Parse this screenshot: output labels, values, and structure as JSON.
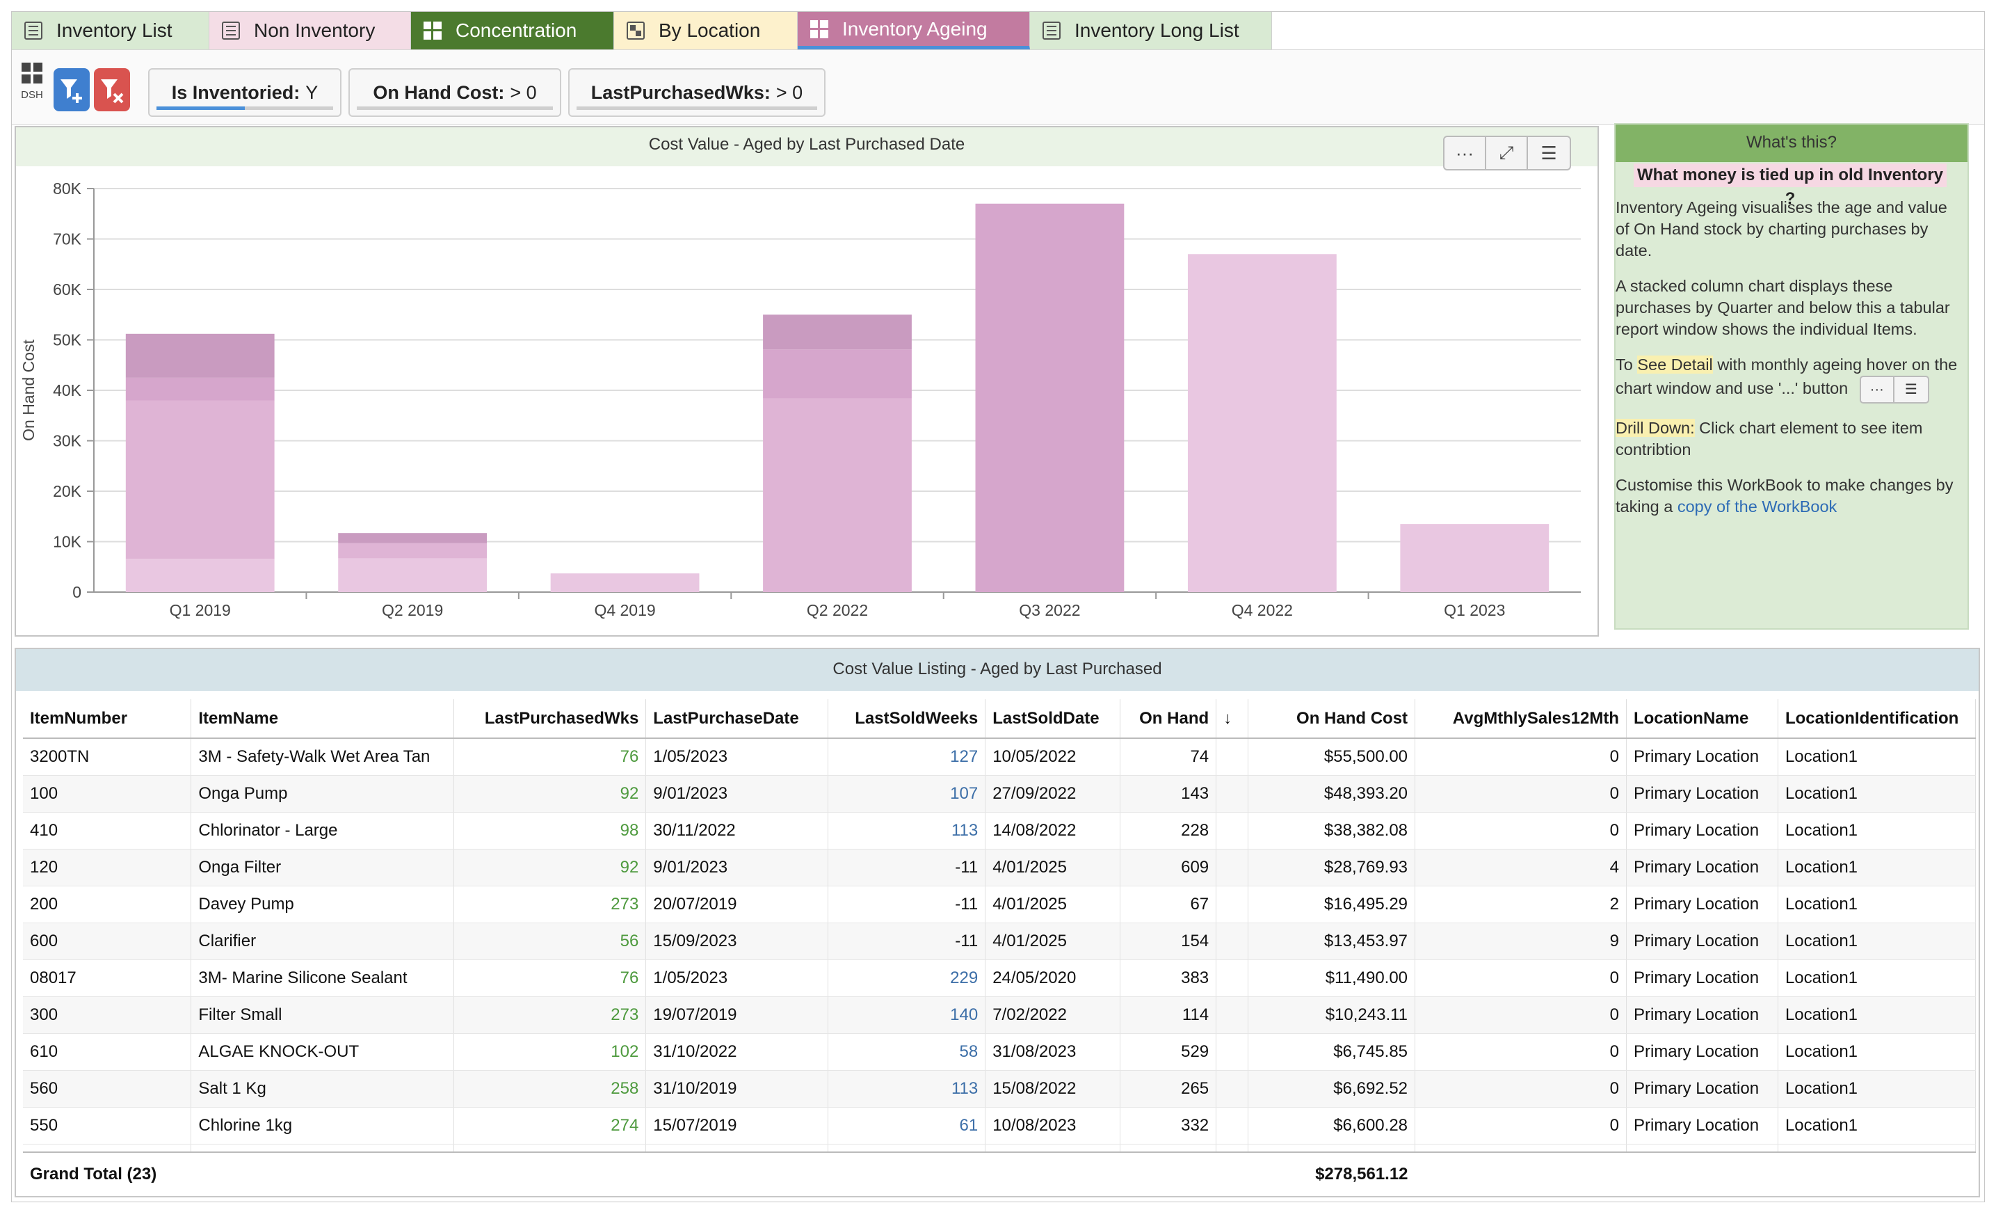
{
  "tabs": [
    {
      "label": "Inventory List",
      "icon": "list-icon",
      "bg": "#d9ead3",
      "color": "#222222",
      "active": false
    },
    {
      "label": "Non Inventory",
      "icon": "list-icon",
      "bg": "#f4dde6",
      "color": "#222222",
      "active": false
    },
    {
      "label": "Concentration",
      "icon": "dashboard-icon",
      "bg": "#4b7a2e",
      "color": "#ffffff",
      "active": false
    },
    {
      "label": "By Location",
      "icon": "map-icon",
      "bg": "#fdf1cc",
      "color": "#222222",
      "active": false
    },
    {
      "label": "Inventory Ageing",
      "icon": "dashboard-icon",
      "bg": "#c27ba0",
      "color": "#ffffff",
      "active": true
    },
    {
      "label": "Inventory Long List",
      "icon": "list-icon",
      "bg": "#d9ead3",
      "color": "#222222",
      "active": false
    }
  ],
  "toolbar": {
    "dsh_label": "DSH"
  },
  "filters": [
    {
      "key": "Is Inventoried:",
      "value": "Y"
    },
    {
      "key": "On Hand Cost:",
      "value": "> 0"
    },
    {
      "key": "LastPurchasedWks:",
      "value": "> 0"
    }
  ],
  "chart_panel": {
    "title": "Cost Value - Aged by Last Purchased Date",
    "more_label": "···",
    "expand_label": "⤢",
    "list_label": "☰"
  },
  "chart_data": {
    "type": "bar",
    "stacked": true,
    "ylabel": "On Hand Cost",
    "ylim": [
      0,
      80000
    ],
    "yticks": [
      "0",
      "10K",
      "20K",
      "30K",
      "40K",
      "50K",
      "60K",
      "70K",
      "80K"
    ],
    "categories": [
      "Q1 2019",
      "Q2 2019",
      "Q4 2019",
      "Q2 2022",
      "Q3 2022",
      "Q4 2022",
      "Q1 2023"
    ],
    "series": [
      {
        "color": "#e9c7e1",
        "values": [
          6600,
          6700,
          3700,
          0,
          0,
          67000,
          13500
        ]
      },
      {
        "color": "#dfb4d5",
        "values": [
          31400,
          3000,
          0,
          38400,
          0,
          0,
          0
        ]
      },
      {
        "color": "#d6a6cc",
        "values": [
          4500,
          0,
          0,
          9700,
          77000,
          0,
          0
        ]
      },
      {
        "color": "#c99bc0",
        "values": [
          8700,
          2000,
          0,
          6900,
          0,
          0,
          0
        ]
      }
    ],
    "grid": true,
    "legend": "none"
  },
  "side": {
    "title": "What's this?",
    "subtitle": "What money is tied up in old Inventory ?",
    "p1": "Inventory Ageing visualises the age and value of On Hand stock by charting purchases by date.",
    "p2": "A stacked column chart displays these purchases by Quarter and below this a tabular report window shows the individual Items.",
    "p3_prefix": "To",
    "p3_hl": "See Detail",
    "p3_rest": "with monthly ageing  hover on the chart window and use '...' button",
    "mini_more": "···",
    "mini_list": "☰",
    "p4_hl": "Drill Down:",
    "p4_rest": "Click chart element to see item contribtion",
    "p5_prefix": "Customise this WorkBook to make changes by taking a",
    "p5_link": "copy of the WorkBook"
  },
  "table": {
    "title": "Cost Value Listing - Aged by Last Purchased",
    "columns": [
      "ItemNumber",
      "ItemName",
      "LastPurchasedWks",
      "LastPurchaseDate",
      "LastSoldWeeks",
      "LastSoldDate",
      "On Hand",
      "↓",
      "On Hand Cost",
      "AvgMthlySales12Mth",
      "LocationName",
      "LocationIdentification"
    ],
    "rows": [
      [
        "3200TN",
        "3M - Safety-Walk Wet Area Tan",
        "76",
        "1/05/2023",
        "127",
        "10/05/2022",
        "74",
        "",
        "$55,500.00",
        "0",
        "Primary Location",
        "Location1"
      ],
      [
        "100",
        "Onga Pump",
        "92",
        "9/01/2023",
        "107",
        "27/09/2022",
        "143",
        "",
        "$48,393.20",
        "0",
        "Primary Location",
        "Location1"
      ],
      [
        "410",
        "Chlorinator - Large",
        "98",
        "30/11/2022",
        "113",
        "14/08/2022",
        "228",
        "",
        "$38,382.08",
        "0",
        "Primary Location",
        "Location1"
      ],
      [
        "120",
        "Onga Filter",
        "92",
        "9/01/2023",
        "-11",
        "4/01/2025",
        "609",
        "",
        "$28,769.93",
        "4",
        "Primary Location",
        "Location1"
      ],
      [
        "200",
        "Davey Pump",
        "273",
        "20/07/2019",
        "-11",
        "4/01/2025",
        "67",
        "",
        "$16,495.29",
        "2",
        "Primary Location",
        "Location1"
      ],
      [
        "600",
        "Clarifier",
        "56",
        "15/09/2023",
        "-11",
        "4/01/2025",
        "154",
        "",
        "$13,453.97",
        "9",
        "Primary Location",
        "Location1"
      ],
      [
        "08017",
        "3M- Marine Silicone Sealant",
        "76",
        "1/05/2023",
        "229",
        "24/05/2020",
        "383",
        "",
        "$11,490.00",
        "0",
        "Primary Location",
        "Location1"
      ],
      [
        "300",
        "Filter Small",
        "273",
        "19/07/2019",
        "140",
        "7/02/2022",
        "114",
        "",
        "$10,243.11",
        "0",
        "Primary Location",
        "Location1"
      ],
      [
        "610",
        "ALGAE KNOCK-OUT",
        "102",
        "31/10/2022",
        "58",
        "31/08/2023",
        "529",
        "",
        "$6,745.85",
        "0",
        "Primary Location",
        "Location1"
      ],
      [
        "560",
        "Salt 1 Kg",
        "258",
        "31/10/2019",
        "113",
        "15/08/2022",
        "265",
        "",
        "$6,692.52",
        "0",
        "Primary Location",
        "Location1"
      ],
      [
        "550",
        "Chlorine 1kg",
        "274",
        "15/07/2019",
        "61",
        "10/08/2023",
        "332",
        "",
        "$6,600.28",
        "0",
        "Primary Location",
        "Location1"
      ]
    ],
    "grand_total_label": "Grand Total (23)",
    "grand_total_cost": "$278,561.12"
  }
}
